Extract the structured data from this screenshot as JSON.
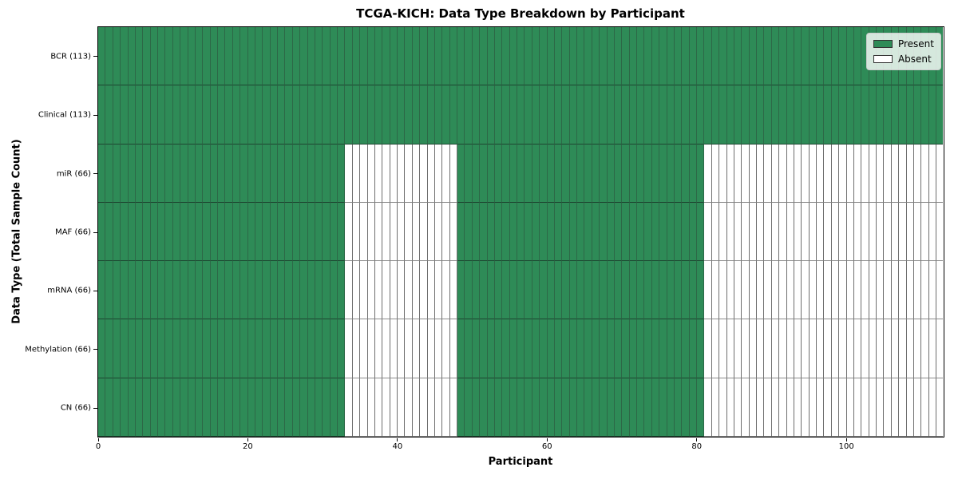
{
  "title": "TCGA-KICH: Data Type Breakdown by Participant",
  "axes": {
    "xlabel": "Participant",
    "ylabel": "Data Type (Total Sample Count)"
  },
  "legend": {
    "items": [
      {
        "label": "Present",
        "color": "#2e8b57"
      },
      {
        "label": "Absent",
        "color": "#ffffff"
      }
    ]
  },
  "chart_data": {
    "type": "heatmap",
    "title": "TCGA-KICH: Data Type Breakdown by Participant",
    "xlabel": "Participant",
    "ylabel": "Data Type (Total Sample Count)",
    "xlim": [
      0,
      113
    ],
    "x_ticks": [
      0,
      20,
      40,
      60,
      80,
      100
    ],
    "n_participants": 113,
    "grid": false,
    "legend_position": "upper right",
    "colors": {
      "present": "#2e8b57",
      "absent": "#ffffff"
    },
    "legend": [
      "Present",
      "Absent"
    ],
    "rows": [
      {
        "label": "BCR (113)",
        "data_type": "BCR",
        "total_samples": 113,
        "present_ranges": [
          [
            0,
            113
          ]
        ]
      },
      {
        "label": "Clinical (113)",
        "data_type": "Clinical",
        "total_samples": 113,
        "present_ranges": [
          [
            0,
            113
          ]
        ]
      },
      {
        "label": "miR (66)",
        "data_type": "miR",
        "total_samples": 66,
        "present_ranges": [
          [
            0,
            33
          ],
          [
            48,
            81
          ]
        ]
      },
      {
        "label": "MAF (66)",
        "data_type": "MAF",
        "total_samples": 66,
        "present_ranges": [
          [
            0,
            33
          ],
          [
            48,
            81
          ]
        ]
      },
      {
        "label": "mRNA (66)",
        "data_type": "mRNA",
        "total_samples": 66,
        "present_ranges": [
          [
            0,
            33
          ],
          [
            48,
            81
          ]
        ]
      },
      {
        "label": "Methylation (66)",
        "data_type": "Methylation",
        "total_samples": 66,
        "present_ranges": [
          [
            0,
            33
          ],
          [
            48,
            81
          ]
        ]
      },
      {
        "label": "CN (66)",
        "data_type": "CN",
        "total_samples": 66,
        "present_ranges": [
          [
            0,
            33
          ],
          [
            48,
            81
          ]
        ]
      }
    ]
  }
}
